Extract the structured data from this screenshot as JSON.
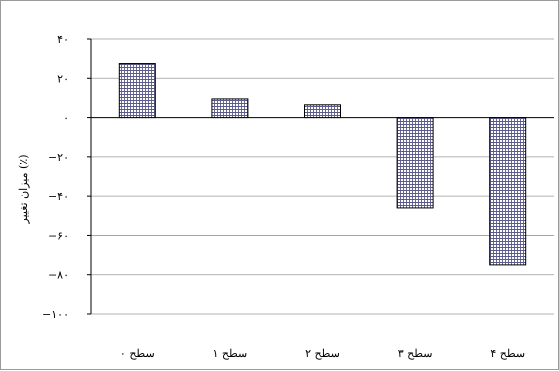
{
  "chart_data": {
    "type": "bar",
    "categories": [
      "سطح ۰",
      "سطح ۱",
      "سطح ۲",
      "سطح ۳",
      "سطح ۴"
    ],
    "values": [
      27.5,
      9.5,
      6.5,
      -46,
      -75
    ],
    "ylabel": "میزان تغییر (٪)",
    "ylim": [
      -100,
      40
    ],
    "yticks": [
      40,
      20,
      0,
      -20,
      -40,
      -60,
      -80,
      -100
    ],
    "ytick_labels": [
      "۴۰",
      "۲۰",
      "۰",
      "−۲۰",
      "−۴۰",
      "−۶۰",
      "−۸۰",
      "−۱۰۰"
    ],
    "grid": true,
    "bar_fill": "grid-hatch",
    "bar_color": "#5a5a8c",
    "gridline_color": "#9a9a9a"
  }
}
